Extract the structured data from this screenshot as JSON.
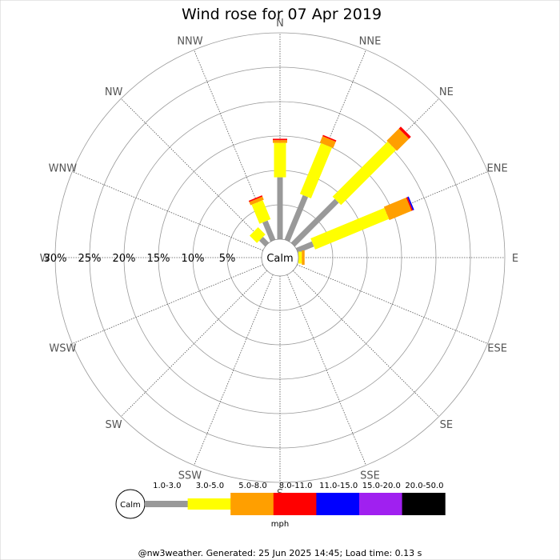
{
  "chart_data": {
    "type": "wind-rose",
    "title": "Wind rose for 07 Apr 2019",
    "directions": [
      "N",
      "NNE",
      "NE",
      "ENE",
      "E",
      "ESE",
      "SE",
      "SSE",
      "S",
      "SSW",
      "SW",
      "WSW",
      "W",
      "WNW",
      "NW",
      "NNW"
    ],
    "radial_ticks": [
      "5%",
      "10%",
      "15%",
      "20%",
      "25%",
      "30%"
    ],
    "radial_values": [
      5,
      10,
      15,
      20,
      25,
      30
    ],
    "calm_label": "Calm",
    "speed_bins": [
      "1.0-3.0",
      "3.0-5.0",
      "5.0-8.0",
      "8.0-11.0",
      "11.0-15.0",
      "15.0-20.0",
      "20.0-50.0"
    ],
    "bin_colors": [
      "#999999",
      "#ffff00",
      "#ff9f00",
      "#ff0000",
      "#0000ff",
      "#a020f0",
      "#000000"
    ],
    "unit": "mph",
    "series": [
      {
        "dir": "N",
        "values": [
          9.0,
          5.0,
          0.4,
          0.2,
          0,
          0,
          0
        ]
      },
      {
        "dir": "NNE",
        "values": [
          7.0,
          8.0,
          1.0,
          0.2,
          0,
          0,
          0
        ]
      },
      {
        "dir": "NE",
        "values": [
          9.0,
          11.3,
          2.5,
          0.4,
          0,
          0,
          0
        ]
      },
      {
        "dir": "ENE",
        "values": [
          2.5,
          11.6,
          3.5,
          0.2,
          0.2,
          0,
          0
        ]
      },
      {
        "dir": "E",
        "values": [
          0.0,
          0.5,
          0.4,
          0,
          0,
          0,
          0
        ]
      },
      {
        "dir": "ESE",
        "values": [
          0,
          0,
          0,
          0,
          0,
          0,
          0
        ]
      },
      {
        "dir": "SE",
        "values": [
          0,
          0,
          0,
          0,
          0,
          0,
          0
        ]
      },
      {
        "dir": "SSE",
        "values": [
          0,
          0,
          0,
          0,
          0,
          0,
          0
        ]
      },
      {
        "dir": "S",
        "values": [
          0,
          0,
          0,
          0,
          0,
          0,
          0
        ]
      },
      {
        "dir": "SSW",
        "values": [
          0,
          0,
          0,
          0,
          0,
          0,
          0
        ]
      },
      {
        "dir": "SW",
        "values": [
          0,
          0,
          0,
          0,
          0,
          0,
          0
        ]
      },
      {
        "dir": "WSW",
        "values": [
          0,
          0,
          0,
          0,
          0,
          0,
          0
        ]
      },
      {
        "dir": "W",
        "values": [
          0,
          0,
          0,
          0,
          0,
          0,
          0
        ]
      },
      {
        "dir": "WNW",
        "values": [
          0,
          0,
          0,
          0,
          0,
          0,
          0
        ]
      },
      {
        "dir": "NW",
        "values": [
          1.2,
          1.5,
          0,
          0,
          0,
          0,
          0
        ]
      },
      {
        "dir": "NNW",
        "values": [
          3.0,
          3.0,
          0.5,
          0.2,
          0,
          0,
          0
        ]
      }
    ]
  },
  "footer": "@nw3weather. Generated: 25 Jun 2025 14:45; Load time: 0.13 s"
}
